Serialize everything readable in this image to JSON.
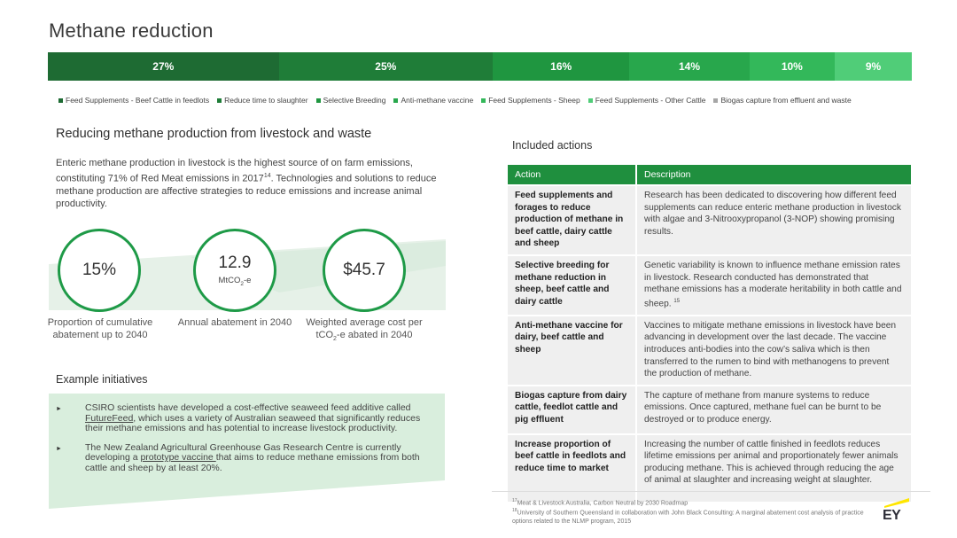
{
  "title": "Methane reduction",
  "bar": [
    {
      "label": "27%",
      "pct": 27,
      "color": "#1e6b33"
    },
    {
      "label": "25%",
      "pct": 25,
      "color": "#1f7d38"
    },
    {
      "label": "16%",
      "pct": 16,
      "color": "#1f9640"
    },
    {
      "label": "14%",
      "pct": 14,
      "color": "#28a74c"
    },
    {
      "label": "10%",
      "pct": 10,
      "color": "#33b85a"
    },
    {
      "label": "9%",
      "pct": 9,
      "color": "#50cd78"
    }
  ],
  "legend": [
    {
      "label": "Feed Supplements - Beef Cattle in feedlots",
      "color": "#1e6b33"
    },
    {
      "label": "Reduce time to slaughter",
      "color": "#1f7d38"
    },
    {
      "label": "Selective Breeding",
      "color": "#1f9640"
    },
    {
      "label": "Anti-methane vaccine",
      "color": "#28a74c"
    },
    {
      "label": "Feed Supplements - Sheep",
      "color": "#33b85a"
    },
    {
      "label": "Feed Supplements - Other Cattle",
      "color": "#50cd78"
    },
    {
      "label": "Biogas capture from effluent and waste",
      "color": "#a6a6a6"
    }
  ],
  "section": {
    "heading": "Reducing methane production from livestock and waste",
    "intro_a": "Enteric methane production in livestock is the highest source of on farm emissions, constituting 71% of Red Meat emissions in 2017",
    "intro_sup": "14",
    "intro_b": ". Technologies and solutions to reduce methane production are affective strategies to reduce emissions and increase animal productivity."
  },
  "metrics": [
    {
      "value": "15%",
      "unit": "",
      "caption": "Proportion of cumulative abatement up to 2040"
    },
    {
      "value": "12.9",
      "unit_pre": "MtCO",
      "unit_sub": "2",
      "unit_post": "-e",
      "caption": "Annual abatement in 2040"
    },
    {
      "value": "$45.7",
      "unit": "",
      "caption_pre": "Weighted average cost per tCO",
      "caption_sub": "2",
      "caption_post": "-e abated in 2040"
    }
  ],
  "initiatives": {
    "heading": "Example initiatives",
    "items": [
      {
        "pre": "CSIRO scientists have developed a cost-effective seaweed feed additive called ",
        "link": "FutureFeed",
        "post": ", which uses a variety of Australian seaweed that significantly reduces their methane emissions and has potential to increase livestock productivity."
      },
      {
        "pre": "The New Zealand Agricultural Greenhouse Gas Research Centre is currently developing a ",
        "link": "prototype vaccine ",
        "post": "that aims to reduce methane emissions from both cattle and sheep by at least 20%."
      }
    ]
  },
  "table": {
    "heading": "Included actions",
    "col_action": "Action",
    "col_description": "Description",
    "rows": [
      {
        "action": "Feed supplements and forages to reduce production of methane in beef cattle, dairy cattle and sheep",
        "description": "Research has been dedicated to discovering how different feed supplements can reduce enteric methane production in livestock with algae and 3-Nitrooxypropanol (3-NOP) showing promising results.",
        "sup": ""
      },
      {
        "action": "Selective breeding for methane reduction in sheep, beef cattle and dairy cattle",
        "description": "Genetic variability is known to influence methane emission rates in livestock. Research conducted has demonstrated that methane emissions has a moderate heritability in both cattle and sheep. ",
        "sup": "15"
      },
      {
        "action": "Anti-methane vaccine for dairy, beef cattle and sheep",
        "description": "Vaccines to mitigate methane emissions in livestock have been advancing in development over the last decade. The vaccine introduces anti-bodies into the cow’s saliva which is then transferred to the rumen to bind with methanogens to prevent the production of methane.",
        "sup": ""
      },
      {
        "action": "Biogas capture from dairy cattle, feedlot cattle and pig effluent",
        "description": "The capture of methane from manure systems to reduce emissions. Once captured, methane fuel can be burnt to be destroyed or to produce energy.",
        "sup": ""
      },
      {
        "action": "Increase proportion of beef cattle in feedlots and reduce time to market",
        "description": "Increasing the number of cattle finished in feedlots reduces lifetime emissions per animal and proportionately fewer animals producing methane. This is achieved through reducing the age of animal at slaughter and increasing weight at slaughter.",
        "sup": ""
      }
    ]
  },
  "footnotes": [
    {
      "num": "17",
      "text": "Meat & Livestock Australia, Carbon Neutral by 2030 Roadmap"
    },
    {
      "num": "18",
      "text": "University of Southern Queensland in collaboration with John Black Consulting: A marginal abatement cost analysis of practice options related to the NLMP program, 2015"
    }
  ],
  "logo": {
    "text": "EY",
    "icon": "ey-logo-icon",
    "accent": "#ffe600"
  }
}
